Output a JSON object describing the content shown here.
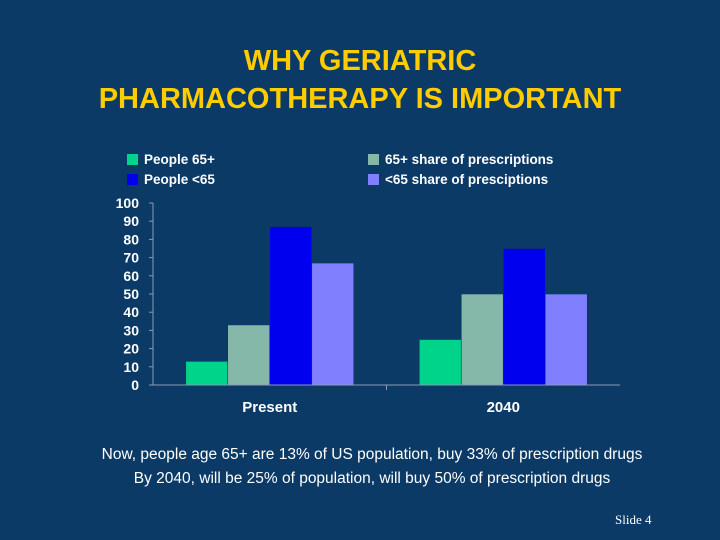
{
  "slide": {
    "title_line1": "WHY GERIATRIC",
    "title_line2": "PHARMACOTHERAPY IS IMPORTANT",
    "caption_line1": "Now, people age 65+ are 13% of US population, buy 33% of prescription drugs",
    "caption_line2": "By 2040, will be 25% of population, will buy 50% of prescription drugs",
    "slide_number": "Slide 4"
  },
  "colors": {
    "background": "#0b3a66",
    "title": "#ffcc00",
    "text": "#ffffff"
  },
  "chart_data": {
    "type": "bar",
    "categories": [
      "Present",
      "2040"
    ],
    "series": [
      {
        "name": "People 65+",
        "values": [
          13,
          25
        ],
        "color": "#00d38a"
      },
      {
        "name": "65+ share of prescriptions",
        "values": [
          33,
          50
        ],
        "color": "#86b8aa"
      },
      {
        "name": "People <65",
        "values": [
          87,
          75
        ],
        "color": "#0000ee"
      },
      {
        "name": "<65 share of presciptions",
        "values": [
          67,
          50
        ],
        "color": "#8080ff"
      }
    ],
    "ylim": [
      0,
      100
    ],
    "yticks": [
      "0",
      "10",
      "20",
      "30",
      "40",
      "50",
      "60",
      "70",
      "80",
      "90",
      "100"
    ],
    "legend_position": "top",
    "grid": false
  }
}
